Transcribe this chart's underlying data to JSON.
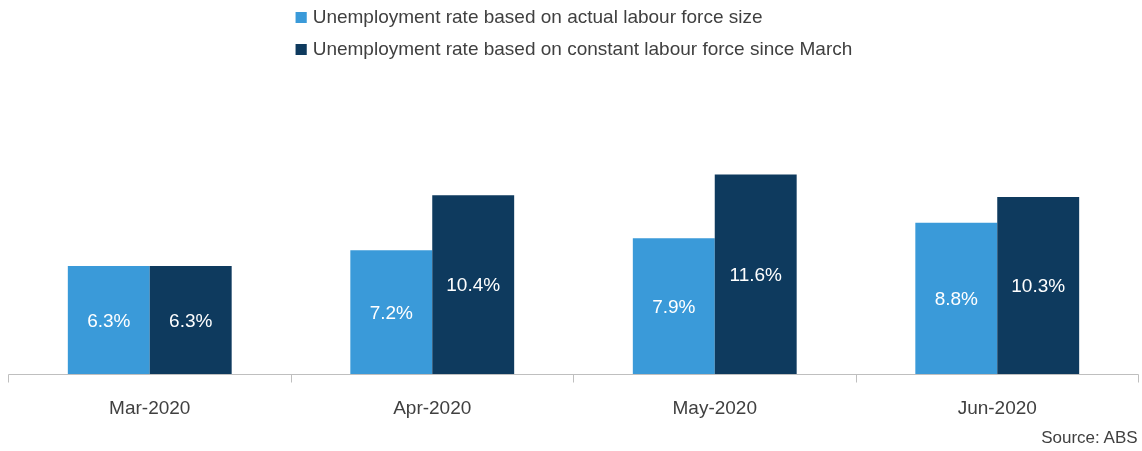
{
  "chart_data": {
    "type": "bar",
    "categories": [
      "Mar-2020",
      "Apr-2020",
      "May-2020",
      "Jun-2020"
    ],
    "series": [
      {
        "name": "Unemployment rate based on actual labour force size",
        "color": "#3a9ad9",
        "values": [
          6.3,
          7.2,
          7.9,
          8.8
        ],
        "value_labels": [
          "6.3%",
          "7.2%",
          "7.9%",
          "8.8%"
        ]
      },
      {
        "name": "Unemployment rate based on constant labour force since March",
        "color": "#0e3a5e",
        "values": [
          6.3,
          10.4,
          11.6,
          10.3
        ],
        "value_labels": [
          "6.3%",
          "10.4%",
          "11.6%",
          "10.3%"
        ]
      }
    ],
    "legend": "top",
    "grid": false,
    "annotations": [
      "Source: ABS"
    ]
  }
}
